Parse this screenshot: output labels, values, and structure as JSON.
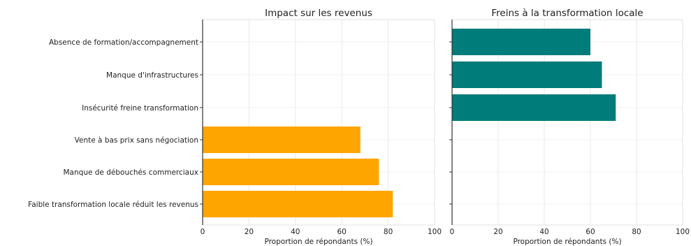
{
  "chart_data": [
    {
      "type": "bar",
      "orientation": "horizontal",
      "title": "Impact sur les revenus",
      "xlabel": "Proportion de répondants (%)",
      "ylabel": "",
      "xlim": [
        0,
        100
      ],
      "xticks": [
        0,
        20,
        40,
        60,
        80,
        100
      ],
      "grid": true,
      "color": "#ffa500",
      "categories": [
        "Absence de formation/accompagnement",
        "Manque d'infrastructures",
        "Insécurité freine transformation",
        "Vente à bas prix sans négociation",
        "Manque de débouchés commerciaux",
        "Faible transformation locale réduit les revenus"
      ],
      "values": [
        0,
        0,
        0,
        68,
        76,
        82
      ]
    },
    {
      "type": "bar",
      "orientation": "horizontal",
      "title": "Freins à la transformation locale",
      "xlabel": "Proportion de répondants (%)",
      "ylabel": "",
      "xlim": [
        0,
        100
      ],
      "xticks": [
        0,
        20,
        40,
        60,
        80,
        100
      ],
      "grid": true,
      "color": "#007c7a",
      "categories": [
        "Absence de formation/accompagnement",
        "Manque d'infrastructures",
        "Insécurité freine transformation",
        "Vente à bas prix sans négociation",
        "Manque de débouchés commerciaux",
        "Faible transformation locale réduit les revenus"
      ],
      "values": [
        60,
        65,
        71,
        0,
        0,
        0
      ]
    }
  ]
}
